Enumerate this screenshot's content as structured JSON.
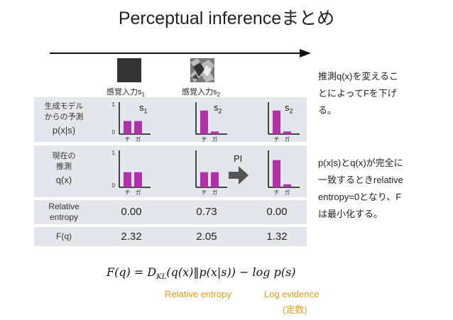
{
  "title": "Perceptual inferenceまとめ",
  "stimuli": [
    {
      "label": "感覚入力s",
      "sub": "1"
    },
    {
      "label": "感覚入力s",
      "sub": "2"
    }
  ],
  "rows": {
    "generative": {
      "line1": "生成モデル",
      "line2": "からの予測",
      "line3": "p(x|s)"
    },
    "current": {
      "line1": "現在の",
      "line2": "推測",
      "line3": "q(x)"
    },
    "relative_entropy": {
      "line1": "Relative",
      "line2": "entropy"
    },
    "fq": {
      "label": "F(q)"
    }
  },
  "columns": [
    {
      "s_label": "s",
      "s_sub": "1",
      "p": [
        0.5,
        0.5
      ],
      "q": [
        0.5,
        0.5
      ],
      "relative_entropy": "0.00",
      "fq": "2.32"
    },
    {
      "s_label": "s",
      "s_sub": "2",
      "p": [
        0.9,
        0.1
      ],
      "q": [
        0.5,
        0.5
      ],
      "relative_entropy": "0.73",
      "fq": "2.05"
    },
    {
      "s_label": "s",
      "s_sub": "2",
      "p": [
        0.9,
        0.1
      ],
      "q": [
        0.9,
        0.1
      ],
      "relative_entropy": "0.00",
      "fq": "1.32"
    }
  ],
  "chart_axes": {
    "ymax": "1",
    "ymin": "0",
    "xticks": [
      "チ",
      "ガ"
    ]
  },
  "pi_label": "PI",
  "side_text_1": [
    "推測q(x)を変えるこ",
    "とによってFを下げ",
    "る。"
  ],
  "side_text_2": [
    "p(x|s)とq(x)が完全に",
    "一致するときrelative",
    "entropy=0となり、F",
    "は最小化する。"
  ],
  "formula": "F(q) = D_KL(q(x)‖p(x|s)) − log p(s)",
  "formula_parts": {
    "lhs": "F(q) = ",
    "dkl": "D",
    "dkl_sub": "KL",
    "args": "(q(x)‖p(x|s)) − log p(s)"
  },
  "annotations": {
    "relative_entropy": "Relative entropy",
    "log_evidence": "Log evidence",
    "constant": "(定数)"
  },
  "colors": {
    "bar": "#b030a8",
    "row_bg": "#e3e6ec",
    "accent": "#e39a1a"
  }
}
